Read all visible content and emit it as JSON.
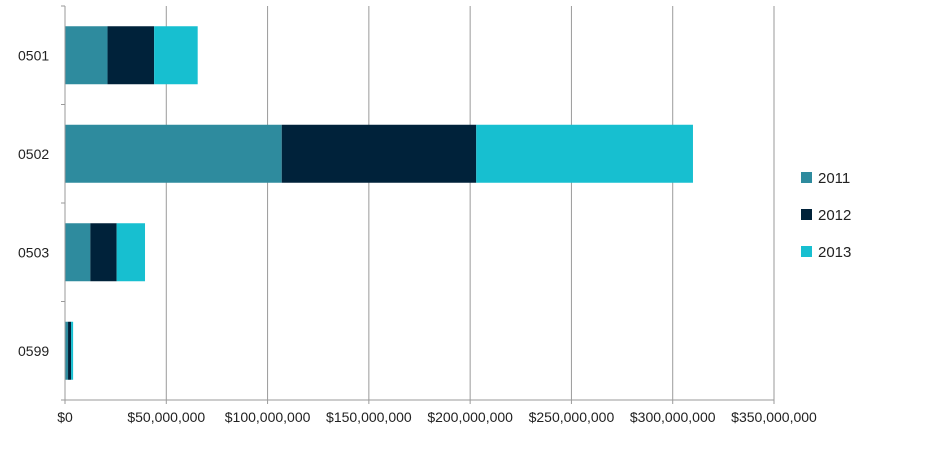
{
  "chart_data": {
    "type": "bar",
    "orientation": "horizontal",
    "stacked": true,
    "categories": [
      "0501",
      "0502",
      "0503",
      "0599"
    ],
    "series": [
      {
        "name": "2011",
        "values": [
          21000000,
          107000000,
          12500000,
          1500000
        ],
        "color": "#2e8b9e"
      },
      {
        "name": "2012",
        "values": [
          23000000,
          96000000,
          13000000,
          1500000
        ],
        "color": "#00223a"
      },
      {
        "name": "2013",
        "values": [
          21500000,
          107000000,
          14000000,
          1000000
        ],
        "color": "#17bfd0"
      }
    ],
    "xlim": [
      0,
      350000000
    ],
    "x_ticks": [
      0,
      50000000,
      100000000,
      150000000,
      200000000,
      250000000,
      300000000,
      350000000
    ],
    "x_tick_labels": [
      "$0",
      "$50,000,000",
      "$100,000,000",
      "$150,000,000",
      "$200,000,000",
      "$250,000,000",
      "$300,000,000",
      "$350,000,000"
    ],
    "grid": "vertical",
    "legend_position": "right",
    "title": "",
    "xlabel": "",
    "ylabel": ""
  }
}
